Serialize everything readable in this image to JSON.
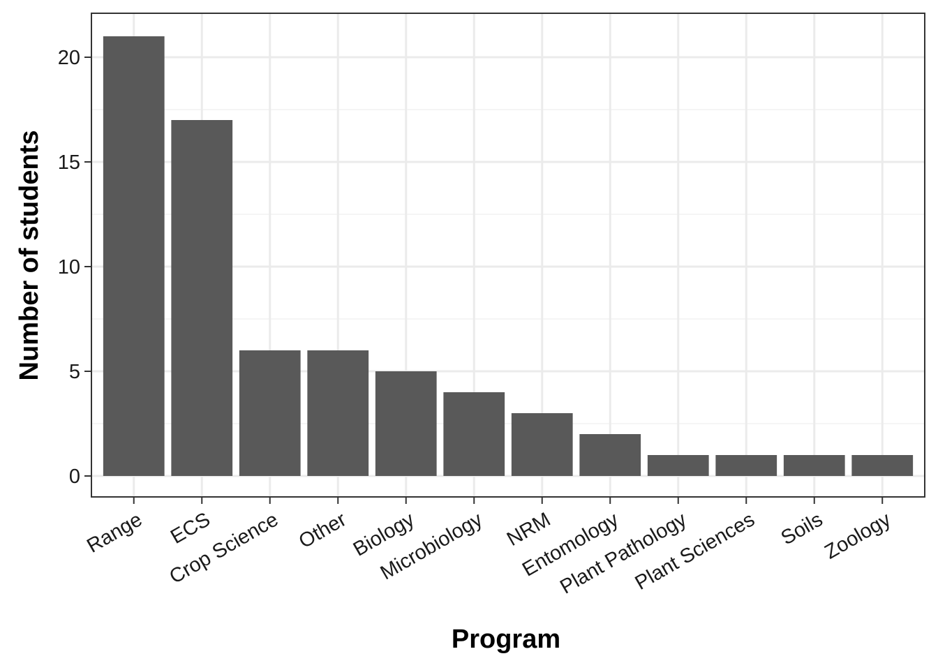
{
  "chart_data": {
    "type": "bar",
    "title": "",
    "xlabel": "Program",
    "ylabel": "Number of students",
    "categories": [
      "Range",
      "ECS",
      "Crop Science",
      "Other",
      "Biology",
      "Microbiology",
      "NRM",
      "Entomology",
      "Plant Pathology",
      "Plant Sciences",
      "Soils",
      "Zoology"
    ],
    "values": [
      21,
      17,
      6,
      6,
      5,
      4,
      3,
      2,
      1,
      1,
      1,
      1
    ],
    "ylim": [
      0,
      22
    ],
    "yticks": [
      0,
      5,
      10,
      15,
      20
    ],
    "ytick_labels": [
      "0",
      "5",
      "10",
      "15",
      "20"
    ],
    "grid": true,
    "legend": "none",
    "colors": {
      "bar": "#595959",
      "major_grid": "#ebebeb",
      "minor_grid": "#f2f2f2",
      "panel_border": "#333333"
    }
  }
}
